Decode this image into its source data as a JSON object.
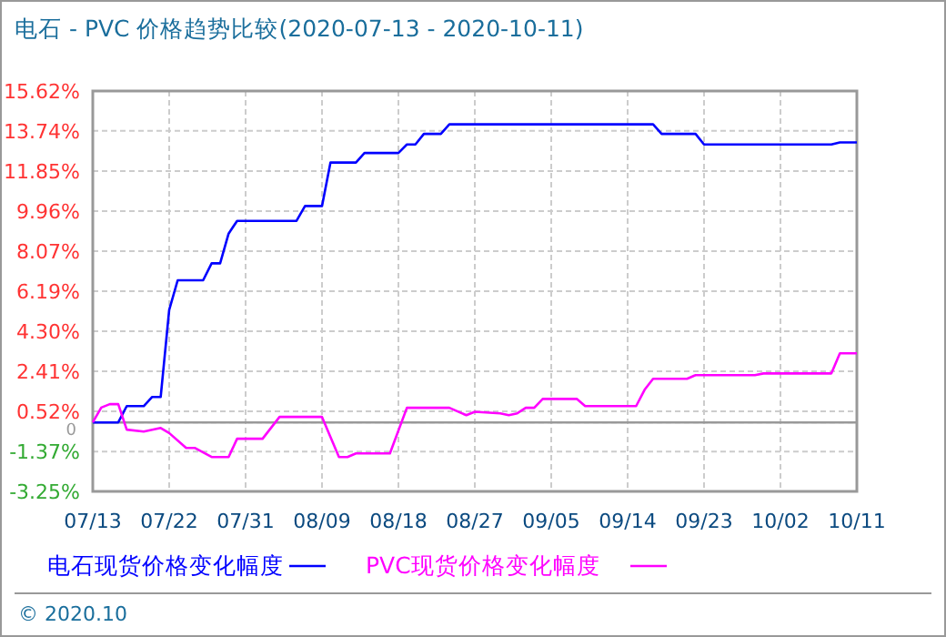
{
  "chart_data": {
    "type": "line",
    "title": "电石 - PVC 价格趋势比较(2020-07-13 - 2020-10-11)",
    "annotations": [
      "© 2020.10"
    ],
    "xlim": [
      "2020-07-13",
      "2020-10-11"
    ],
    "xticks": [
      {
        "value": "2020-07-13",
        "label": "07/13"
      },
      {
        "value": "2020-07-22",
        "label": "07/22"
      },
      {
        "value": "2020-07-31",
        "label": "07/31"
      },
      {
        "value": "2020-08-09",
        "label": "08/09"
      },
      {
        "value": "2020-08-18",
        "label": "08/18"
      },
      {
        "value": "2020-08-27",
        "label": "08/27"
      },
      {
        "value": "2020-09-05",
        "label": "09/05"
      },
      {
        "value": "2020-09-14",
        "label": "09/14"
      },
      {
        "value": "2020-09-23",
        "label": "09/23"
      },
      {
        "value": "2020-10-02",
        "label": "10/02"
      },
      {
        "value": "2020-10-11",
        "label": "10/11"
      }
    ],
    "ylim": [
      -3.25,
      15.62
    ],
    "yticks": [
      {
        "value": -3.25,
        "label": "-3.25%"
      },
      {
        "value": -1.37,
        "label": "-1.37%"
      },
      {
        "value": 0,
        "label": "0"
      },
      {
        "value": 0.52,
        "label": "0.52%"
      },
      {
        "value": 2.41,
        "label": "2.41%"
      },
      {
        "value": 4.3,
        "label": "4.30%"
      },
      {
        "value": 6.19,
        "label": "6.19%"
      },
      {
        "value": 8.07,
        "label": "8.07%"
      },
      {
        "value": 9.96,
        "label": "9.96%"
      },
      {
        "value": 11.85,
        "label": "11.85%"
      },
      {
        "value": 13.74,
        "label": "13.74%"
      },
      {
        "value": 15.62,
        "label": "15.62%"
      }
    ],
    "grid": true,
    "legend": "bottom",
    "marker": "none",
    "line_style": "solid",
    "ref_lines": [
      {
        "axis": "y",
        "value": 0,
        "color": "#999999"
      }
    ],
    "series": [
      {
        "name": "电石现货价格变化幅度",
        "color": "#0000ff",
        "x": [
          "2020-07-13",
          "2020-07-16",
          "2020-07-17",
          "2020-07-19",
          "2020-07-20",
          "2020-07-21",
          "2020-07-22",
          "2020-07-23",
          "2020-07-26",
          "2020-07-27",
          "2020-07-28",
          "2020-07-29",
          "2020-07-30",
          "2020-08-06",
          "2020-08-07",
          "2020-08-09",
          "2020-08-10",
          "2020-08-13",
          "2020-08-14",
          "2020-08-18",
          "2020-08-19",
          "2020-08-20",
          "2020-08-21",
          "2020-08-23",
          "2020-08-24",
          "2020-09-17",
          "2020-09-18",
          "2020-09-22",
          "2020-09-23",
          "2020-10-08",
          "2020-10-09",
          "2020-10-11"
        ],
        "values": [
          0,
          0,
          0.77,
          0.77,
          1.2,
          1.2,
          5.3,
          6.7,
          6.7,
          7.5,
          7.5,
          8.9,
          9.5,
          9.5,
          10.2,
          10.2,
          12.25,
          12.25,
          12.7,
          12.7,
          13.1,
          13.1,
          13.6,
          13.6,
          14.05,
          14.05,
          13.6,
          13.6,
          13.1,
          13.1,
          13.2,
          13.2
        ]
      },
      {
        "name": "PVC现货价格变化幅度",
        "color": "#ff00ff",
        "x": [
          "2020-07-13",
          "2020-07-14",
          "2020-07-15",
          "2020-07-16",
          "2020-07-17",
          "2020-07-19",
          "2020-07-21",
          "2020-07-22",
          "2020-07-24",
          "2020-07-25",
          "2020-07-27",
          "2020-07-29",
          "2020-07-30",
          "2020-08-02",
          "2020-08-04",
          "2020-08-09",
          "2020-08-11",
          "2020-08-12",
          "2020-08-13",
          "2020-08-17",
          "2020-08-19",
          "2020-08-24",
          "2020-08-26",
          "2020-08-27",
          "2020-08-30",
          "2020-08-31",
          "2020-09-01",
          "2020-09-02",
          "2020-09-03",
          "2020-09-04",
          "2020-09-08",
          "2020-09-09",
          "2020-09-15",
          "2020-09-16",
          "2020-09-17",
          "2020-09-21",
          "2020-09-22",
          "2020-09-29",
          "2020-09-30",
          "2020-10-08",
          "2020-10-09",
          "2020-10-11"
        ],
        "values": [
          0,
          0.7,
          0.86,
          0.86,
          -0.34,
          -0.43,
          -0.26,
          -0.5,
          -1.2,
          -1.2,
          -1.63,
          -1.63,
          -0.77,
          -0.77,
          0.26,
          0.26,
          -1.63,
          -1.63,
          -1.46,
          -1.46,
          0.69,
          0.69,
          0.34,
          0.5,
          0.43,
          0.34,
          0.43,
          0.69,
          0.69,
          1.11,
          1.11,
          0.77,
          0.77,
          1.54,
          2.06,
          2.06,
          2.23,
          2.23,
          2.31,
          2.31,
          3.26,
          3.26
        ]
      }
    ]
  }
}
